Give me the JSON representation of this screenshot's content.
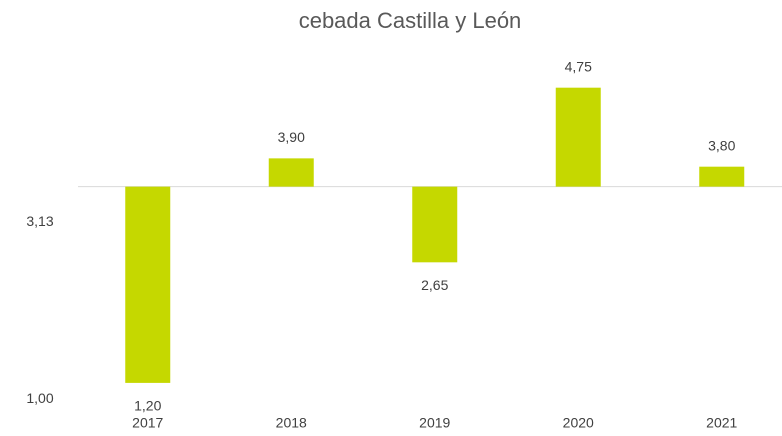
{
  "chart_data": {
    "type": "bar",
    "title": "cebada Castilla y León",
    "categories": [
      "2017",
      "2018",
      "2019",
      "2020",
      "2021"
    ],
    "values": [
      1.2,
      3.9,
      2.65,
      4.75,
      3.8
    ],
    "value_labels": [
      "1,20",
      "3,90",
      "2,65",
      "4,75",
      "3,80"
    ],
    "color": "#c5d800",
    "ylim": [
      0.85,
      5.6
    ],
    "yticks": [
      {
        "value": 3.13,
        "label": "3,13"
      },
      {
        "value": 1,
        "label": "1,00"
      }
    ],
    "x_axis_crosses": 3.56,
    "grid": false
  }
}
